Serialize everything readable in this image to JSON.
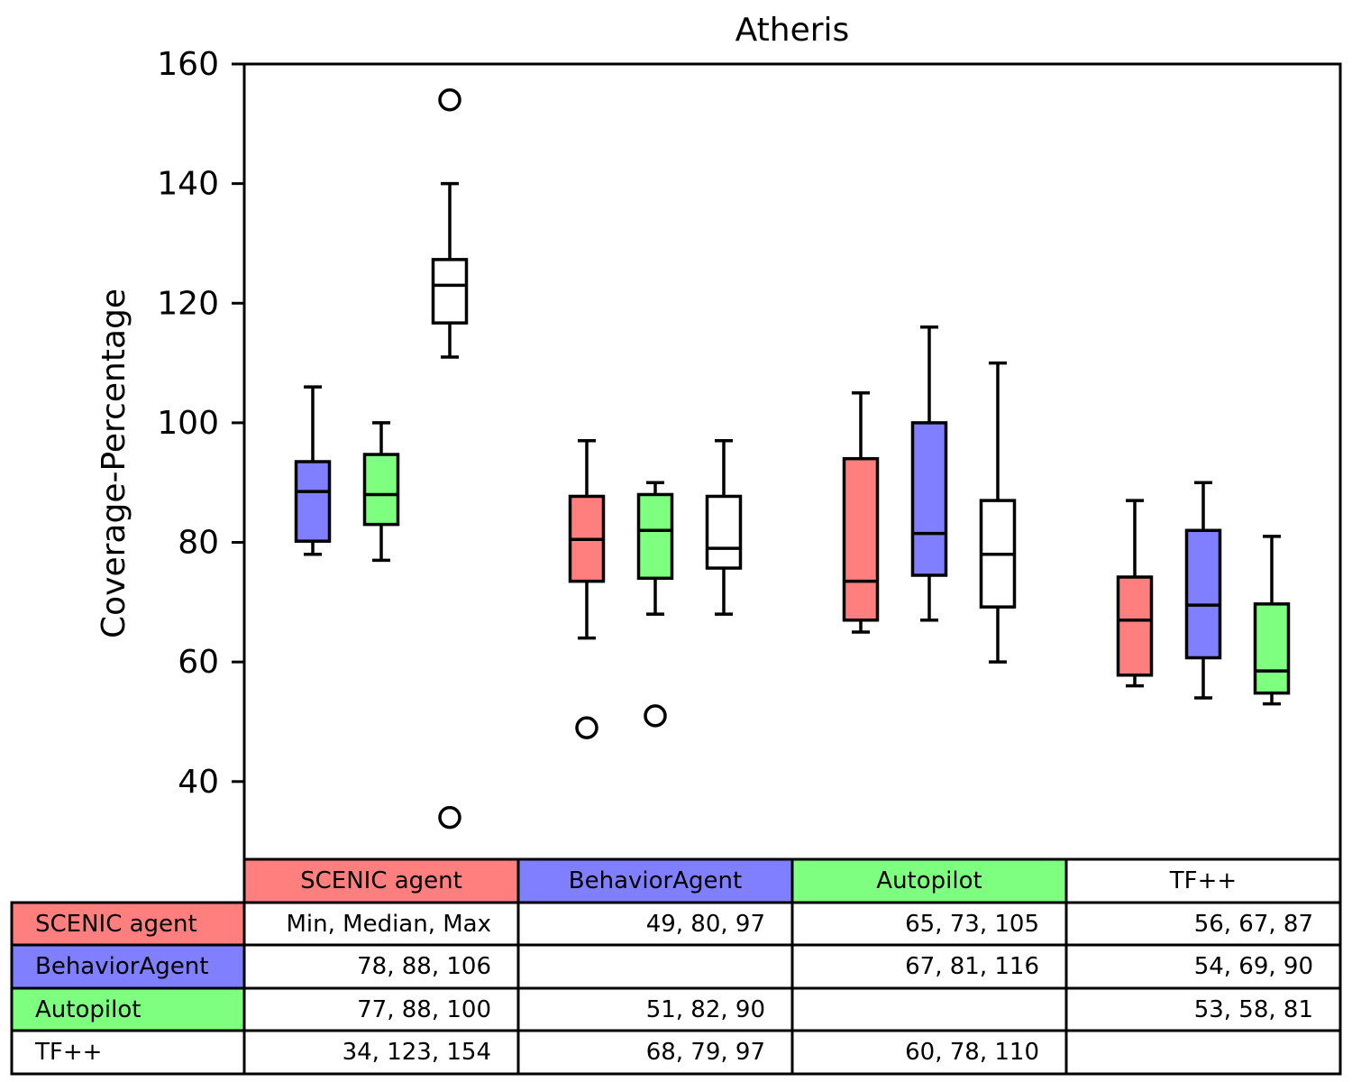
{
  "colors": {
    "scenic_agent": "#ff7f7f",
    "behavior_agent": "#7f7fff",
    "autopilot": "#7fff7f",
    "tfpp": "#ffffff"
  },
  "chart_data": {
    "type": "box",
    "title": "Atheris",
    "xlabel": "",
    "ylabel": "Coverage-Percentage",
    "ylim": [
      27,
      160
    ],
    "yticks": [
      40,
      60,
      80,
      100,
      120,
      140,
      160
    ],
    "grid": false,
    "groups": [
      "SCENIC agent",
      "BehaviorAgent",
      "Autopilot",
      "TF++"
    ],
    "series": [
      {
        "name": "SCENIC agent",
        "color": "#ff7f7f"
      },
      {
        "name": "BehaviorAgent",
        "color": "#7f7fff"
      },
      {
        "name": "Autopilot",
        "color": "#7fff7f"
      },
      {
        "name": "TF++",
        "color": "#ffffff"
      }
    ],
    "boxes": [
      {
        "group": "SCENIC agent",
        "series": "BehaviorAgent",
        "whislo": 78,
        "q1": 80.2,
        "med": 88.5,
        "q3": 93.5,
        "whishi": 106,
        "fliers": []
      },
      {
        "group": "SCENIC agent",
        "series": "Autopilot",
        "whislo": 77,
        "q1": 83,
        "med": 88,
        "q3": 94.7,
        "whishi": 100,
        "fliers": []
      },
      {
        "group": "SCENIC agent",
        "series": "TF++",
        "whislo": 111,
        "q1": 116.7,
        "med": 123,
        "q3": 127.3,
        "whishi": 140,
        "fliers": [
          154,
          34
        ]
      },
      {
        "group": "BehaviorAgent",
        "series": "SCENIC agent",
        "whislo": 64,
        "q1": 73.5,
        "med": 80.5,
        "q3": 87.7,
        "whishi": 97,
        "fliers": [
          49
        ]
      },
      {
        "group": "BehaviorAgent",
        "series": "Autopilot",
        "whislo": 68,
        "q1": 74,
        "med": 82,
        "q3": 88,
        "whishi": 90,
        "fliers": [
          51
        ]
      },
      {
        "group": "BehaviorAgent",
        "series": "TF++",
        "whislo": 68,
        "q1": 75.7,
        "med": 79,
        "q3": 87.7,
        "whishi": 97,
        "fliers": []
      },
      {
        "group": "Autopilot",
        "series": "SCENIC agent",
        "whislo": 65,
        "q1": 67,
        "med": 73.5,
        "q3": 94,
        "whishi": 105,
        "fliers": []
      },
      {
        "group": "Autopilot",
        "series": "BehaviorAgent",
        "whislo": 67,
        "q1": 74.5,
        "med": 81.5,
        "q3": 100,
        "whishi": 116,
        "fliers": []
      },
      {
        "group": "Autopilot",
        "series": "TF++",
        "whislo": 60,
        "q1": 69.2,
        "med": 78,
        "q3": 87,
        "whishi": 110,
        "fliers": []
      },
      {
        "group": "TF++",
        "series": "SCENIC agent",
        "whislo": 56,
        "q1": 57.8,
        "med": 67,
        "q3": 74.2,
        "whishi": 87,
        "fliers": []
      },
      {
        "group": "TF++",
        "series": "BehaviorAgent",
        "whislo": 54,
        "q1": 60.7,
        "med": 69.5,
        "q3": 82,
        "whishi": 90,
        "fliers": []
      },
      {
        "group": "TF++",
        "series": "Autopilot",
        "whislo": 53,
        "q1": 54.8,
        "med": 58.5,
        "q3": 69.7,
        "whishi": 81,
        "fliers": []
      }
    ],
    "table": {
      "col_headers": [
        "SCENIC agent",
        "BehaviorAgent",
        "Autopilot",
        "TF++"
      ],
      "row_headers": [
        "SCENIC agent",
        "BehaviorAgent",
        "Autopilot",
        "TF++"
      ],
      "cells": [
        [
          "Min, Median, Max",
          "49, 80, 97",
          "65, 73, 105",
          "56, 67, 87"
        ],
        [
          "78, 88, 106",
          "",
          "67, 81, 116",
          "54, 69, 90"
        ],
        [
          "77, 88, 100",
          "51, 82, 90",
          "",
          "53, 58, 81"
        ],
        [
          "34, 123, 154",
          "68, 79, 97",
          "60, 78, 110",
          ""
        ]
      ]
    }
  }
}
